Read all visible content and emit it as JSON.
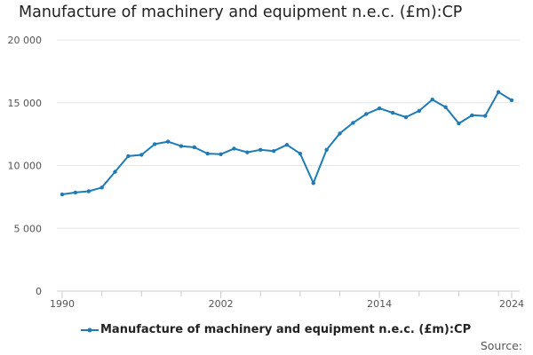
{
  "chart_data": {
    "type": "line",
    "title": "Manufacture of machinery and equipment n.e.c. (£m):CP",
    "xlabel": "",
    "ylabel": "",
    "xlim": [
      1990,
      2024
    ],
    "ylim": [
      0,
      20000
    ],
    "y_ticks": [
      0,
      5000,
      10000,
      15000,
      20000
    ],
    "y_tick_labels": [
      "0",
      "5 000",
      "10 000",
      "15 000",
      "20 000"
    ],
    "x_ticks": [
      1990,
      2002,
      2014,
      2024
    ],
    "x_tick_labels": [
      "1990",
      "2002",
      "2014",
      "2024"
    ],
    "grid": "horizontal",
    "legend_position": "bottom",
    "series": [
      {
        "name": "Manufacture of machinery and equipment n.e.c. (£m):CP",
        "color": "#1f7bb6",
        "x": [
          1990,
          1991,
          1992,
          1993,
          1994,
          1995,
          1996,
          1997,
          1998,
          1999,
          2000,
          2001,
          2002,
          2003,
          2004,
          2005,
          2006,
          2007,
          2008,
          2009,
          2010,
          2011,
          2012,
          2013,
          2014,
          2015,
          2016,
          2017,
          2018,
          2019,
          2020,
          2021,
          2022,
          2023,
          2024
        ],
        "values": [
          7700,
          7850,
          7950,
          8250,
          9500,
          10750,
          10850,
          11700,
          11900,
          11550,
          11450,
          10950,
          10900,
          11350,
          11050,
          11250,
          11150,
          11650,
          10950,
          8600,
          11250,
          12550,
          13400,
          14100,
          14550,
          14200,
          13850,
          14350,
          15250,
          14650,
          13350,
          14000,
          13950,
          15850,
          15200
        ]
      }
    ]
  },
  "footer": {
    "source_label": "Source:"
  }
}
